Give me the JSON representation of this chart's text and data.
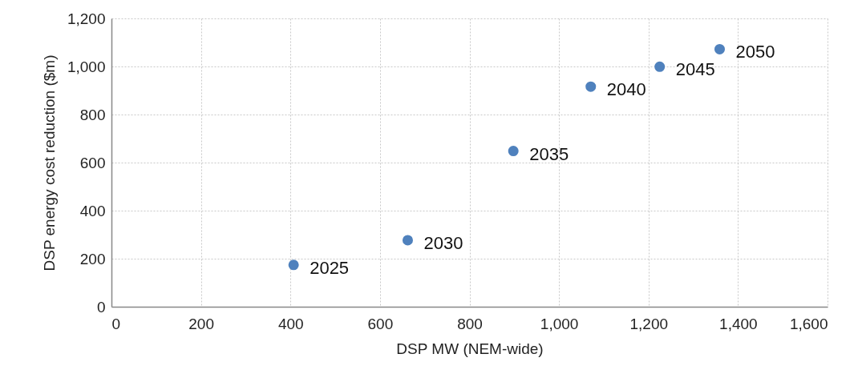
{
  "chart_data": {
    "type": "scatter",
    "xlabel": "DSP MW (NEM-wide)",
    "ylabel": "DSP energy cost reduction ($m)",
    "x": [
      407,
      662,
      898,
      1071,
      1225,
      1359
    ],
    "series": [
      {
        "color": "#4f81bd",
        "values": [
          174,
          277,
          648,
          916,
          999,
          1072
        ]
      }
    ],
    "annotations": [
      {
        "text": "2025",
        "x": 407,
        "y": 174
      },
      {
        "text": "2030",
        "x": 662,
        "y": 277
      },
      {
        "text": "2035",
        "x": 898,
        "y": 648
      },
      {
        "text": "2040",
        "x": 1071,
        "y": 916
      },
      {
        "text": "2045",
        "x": 1225,
        "y": 999
      },
      {
        "text": "2050",
        "x": 1359,
        "y": 1072
      }
    ],
    "xlim": [
      0,
      1600
    ],
    "xticks": [
      {
        "value": 0,
        "label": "0"
      },
      {
        "value": 200,
        "label": "200"
      },
      {
        "value": 400,
        "label": "400"
      },
      {
        "value": 600,
        "label": "600"
      },
      {
        "value": 800,
        "label": "800"
      },
      {
        "value": 1000,
        "label": "1,000"
      },
      {
        "value": 1200,
        "label": "1,200"
      },
      {
        "value": 1400,
        "label": "1,400"
      },
      {
        "value": 1600,
        "label": "1,600"
      }
    ],
    "ylim": [
      0,
      1200
    ],
    "yticks": [
      {
        "value": 0,
        "label": "0"
      },
      {
        "value": 200,
        "label": "200"
      },
      {
        "value": 400,
        "label": "400"
      },
      {
        "value": 600,
        "label": "600"
      },
      {
        "value": 800,
        "label": "800"
      },
      {
        "value": 1000,
        "label": "1,000"
      },
      {
        "value": 1200,
        "label": "1,200"
      }
    ],
    "grid": true,
    "marker": "circle",
    "legend": false
  }
}
